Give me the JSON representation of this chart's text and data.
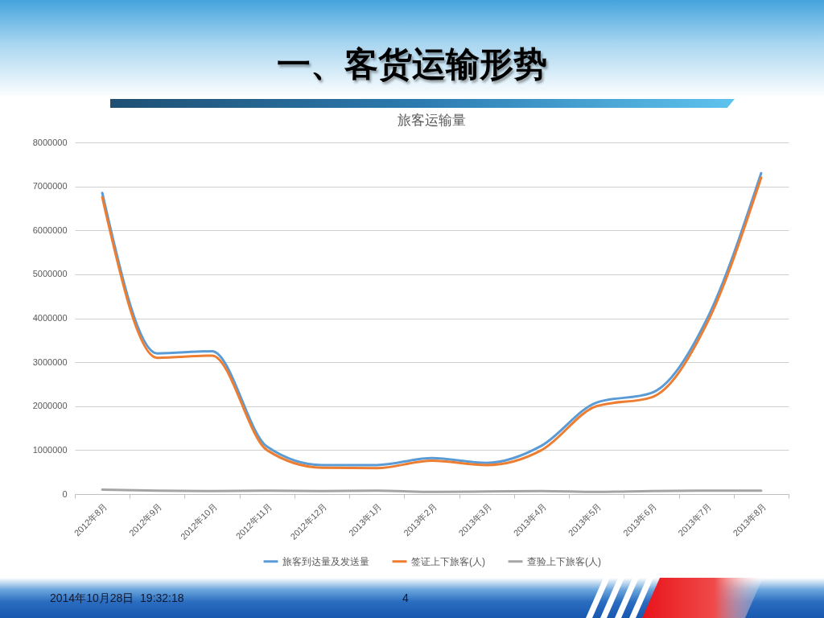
{
  "chart_data": {
    "type": "line",
    "title": "一、客货运输形势",
    "subtitle": "旅客运输量",
    "categories": [
      "2012年8月",
      "2012年9月",
      "2012年10月",
      "2012年11月",
      "2012年12月",
      "2013年1月",
      "2013年2月",
      "2013年3月",
      "2013年4月",
      "2013年5月",
      "2013年6月",
      "2013年7月",
      "2013年8月"
    ],
    "series": [
      {
        "name": "旅客到达量及发送量",
        "color": "#5b9bd5",
        "values": [
          6850000,
          3200000,
          3250000,
          1080000,
          660000,
          660000,
          820000,
          710000,
          1100000,
          2080000,
          2300000,
          3950000,
          7300000
        ]
      },
      {
        "name": "签证上下旅客(人)",
        "color": "#ed7d31",
        "values": [
          6750000,
          3100000,
          3150000,
          1000000,
          600000,
          590000,
          760000,
          660000,
          1000000,
          2000000,
          2200000,
          3850000,
          7200000
        ]
      },
      {
        "name": "查验上下旅客(人)",
        "color": "#a5a5a5",
        "values": [
          100000,
          80000,
          70000,
          80000,
          70000,
          80000,
          50000,
          60000,
          70000,
          50000,
          70000,
          80000,
          80000
        ]
      }
    ],
    "ylim": [
      0,
      8000000
    ],
    "yticks": [
      0,
      1000000,
      2000000,
      3000000,
      4000000,
      5000000,
      6000000,
      7000000,
      8000000
    ],
    "grid": "y",
    "legend": "bottom",
    "marker": "none",
    "line_style": "solid",
    "annotations": [
      "2014年10月28日  19:32:18",
      "4"
    ]
  }
}
